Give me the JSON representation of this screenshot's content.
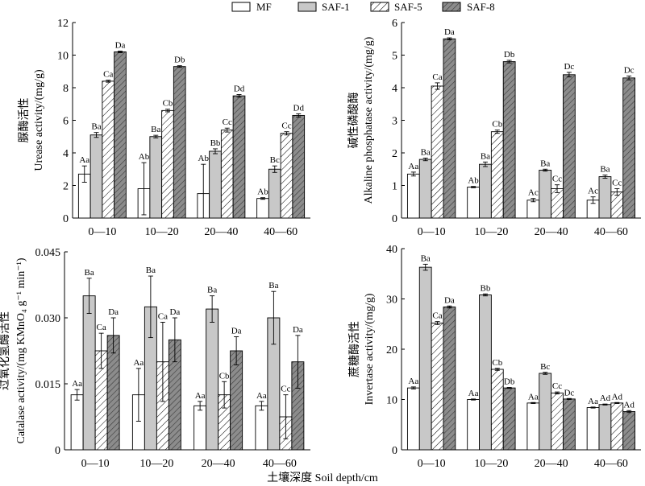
{
  "legend": [
    "MF",
    "SAF-1",
    "SAF-5",
    "SAF-8"
  ],
  "xlabel_bottom": "土壤深度 Soil depth/cm",
  "chart_data": [
    {
      "type": "bar",
      "ylabel_cn": "脲酶活性",
      "ylabel_en": "Urease activity/(mg/g)",
      "categories": [
        "0—10",
        "10—20",
        "20—40",
        "40—60"
      ],
      "ylim": [
        0,
        12
      ],
      "yticks": [
        "0",
        "2",
        "4",
        "6",
        "8",
        "10",
        "12"
      ],
      "series": [
        {
          "name": "MF",
          "values": [
            2.7,
            1.8,
            1.5,
            1.2
          ],
          "errors": [
            0.5,
            1.6,
            1.8,
            0.05
          ],
          "letters": [
            "Aa",
            "Ab",
            "Ab",
            "Ab"
          ]
        },
        {
          "name": "SAF-1",
          "values": [
            5.1,
            5.0,
            4.1,
            3.0
          ],
          "errors": [
            0.15,
            0.08,
            0.15,
            0.2
          ],
          "letters": [
            "Ba",
            "Ba",
            "Bb",
            "Bc"
          ]
        },
        {
          "name": "SAF-5",
          "values": [
            8.4,
            6.6,
            5.4,
            5.2
          ],
          "errors": [
            0.06,
            0.08,
            0.12,
            0.1
          ],
          "letters": [
            "Ca",
            "Cb",
            "Cc",
            "Cc"
          ]
        },
        {
          "name": "SAF-8",
          "values": [
            10.2,
            9.3,
            7.5,
            6.3
          ],
          "errors": [
            0.05,
            0.05,
            0.08,
            0.1
          ],
          "letters": [
            "Da",
            "Db",
            "Dd",
            "Dd"
          ]
        }
      ]
    },
    {
      "type": "bar",
      "ylabel_cn": "碱性磷酸酶",
      "ylabel_en": "Alkaline phosphatase activity/(mg/g)",
      "categories": [
        "0—10",
        "10—20",
        "20—40",
        "40—60"
      ],
      "ylim": [
        0,
        6
      ],
      "yticks": [
        "0",
        "1",
        "2",
        "3",
        "4",
        "5",
        "6"
      ],
      "series": [
        {
          "name": "MF",
          "values": [
            1.35,
            0.95,
            0.55,
            0.55
          ],
          "errors": [
            0.06,
            0.02,
            0.05,
            0.1
          ],
          "letters": [
            "Aa",
            "Ab",
            "Ac",
            "Ac"
          ]
        },
        {
          "name": "SAF-1",
          "values": [
            1.8,
            1.65,
            1.47,
            1.27
          ],
          "errors": [
            0.04,
            0.07,
            0.03,
            0.05
          ],
          "letters": [
            "Ba",
            "Ba",
            "Ba",
            "Ba"
          ]
        },
        {
          "name": "SAF-5",
          "values": [
            4.05,
            2.65,
            0.9,
            0.8
          ],
          "errors": [
            0.1,
            0.05,
            0.12,
            0.1
          ],
          "letters": [
            "Ca",
            "Cb",
            "Cc",
            "Cc"
          ]
        },
        {
          "name": "SAF-8",
          "values": [
            5.5,
            4.8,
            4.4,
            4.3
          ],
          "errors": [
            0.03,
            0.04,
            0.07,
            0.06
          ],
          "letters": [
            "Da",
            "Db",
            "Dc",
            "Dc"
          ]
        }
      ]
    },
    {
      "type": "bar",
      "ylabel_cn": "过氧化氢酶活性",
      "ylabel_en": "Catalase activity/(mg KMnO₄ g⁻¹ min⁻¹)",
      "categories": [
        "0—10",
        "10—20",
        "20—40",
        "40—60"
      ],
      "ylim": [
        0,
        0.045
      ],
      "yticks": [
        "0",
        "0.015",
        "0.030",
        "0.045"
      ],
      "series": [
        {
          "name": "MF",
          "values": [
            0.0125,
            0.0125,
            0.01,
            0.01
          ],
          "errors": [
            0.0012,
            0.006,
            0.001,
            0.001
          ],
          "letters": [
            "Aa",
            "Aa",
            "Aa",
            "Aa"
          ]
        },
        {
          "name": "SAF-1",
          "values": [
            0.035,
            0.0325,
            0.032,
            0.03
          ],
          "errors": [
            0.004,
            0.007,
            0.003,
            0.006
          ],
          "letters": [
            "Ba",
            "Ba",
            "Ba",
            "Ba"
          ]
        },
        {
          "name": "SAF-5",
          "values": [
            0.0225,
            0.02,
            0.0125,
            0.0075
          ],
          "errors": [
            0.004,
            0.009,
            0.003,
            0.005
          ],
          "letters": [
            "Ca",
            "Ca",
            "Cb",
            "Cc"
          ]
        },
        {
          "name": "SAF-8",
          "values": [
            0.026,
            0.025,
            0.0225,
            0.02
          ],
          "errors": [
            0.004,
            0.005,
            0.0032,
            0.006
          ],
          "letters": [
            "Da",
            "Da",
            "Da",
            "Da"
          ]
        }
      ]
    },
    {
      "type": "bar",
      "ylabel_cn": "蔗糖酶活性",
      "ylabel_en": "Invertase activity/(mg/g)",
      "categories": [
        "0—10",
        "10—20",
        "20—40",
        "40—60"
      ],
      "ylim": [
        0,
        40
      ],
      "yticks": [
        "0",
        "10",
        "20",
        "30",
        "40"
      ],
      "series": [
        {
          "name": "MF",
          "values": [
            12.3,
            10.0,
            9.3,
            8.4
          ],
          "errors": [
            0.2,
            0.1,
            0.1,
            0.1
          ],
          "letters": [
            "Aa",
            "Aa",
            "Aa",
            "Aa"
          ]
        },
        {
          "name": "SAF-1",
          "values": [
            36.3,
            30.8,
            15.2,
            9.0
          ],
          "errors": [
            0.6,
            0.2,
            0.2,
            0.1
          ],
          "letters": [
            "Ba",
            "Bb",
            "Bc",
            "Ad"
          ]
        },
        {
          "name": "SAF-5",
          "values": [
            25.2,
            16.0,
            11.3,
            9.3
          ],
          "errors": [
            0.3,
            0.2,
            0.2,
            0.1
          ],
          "letters": [
            "Ca",
            "Cb",
            "Cc",
            "Ad"
          ]
        },
        {
          "name": "SAF-8",
          "values": [
            28.4,
            12.3,
            10.1,
            7.6
          ],
          "errors": [
            0.2,
            0.1,
            0.1,
            0.2
          ],
          "letters": [
            "Da",
            "Db",
            "Dc",
            "Ad"
          ]
        }
      ]
    }
  ]
}
